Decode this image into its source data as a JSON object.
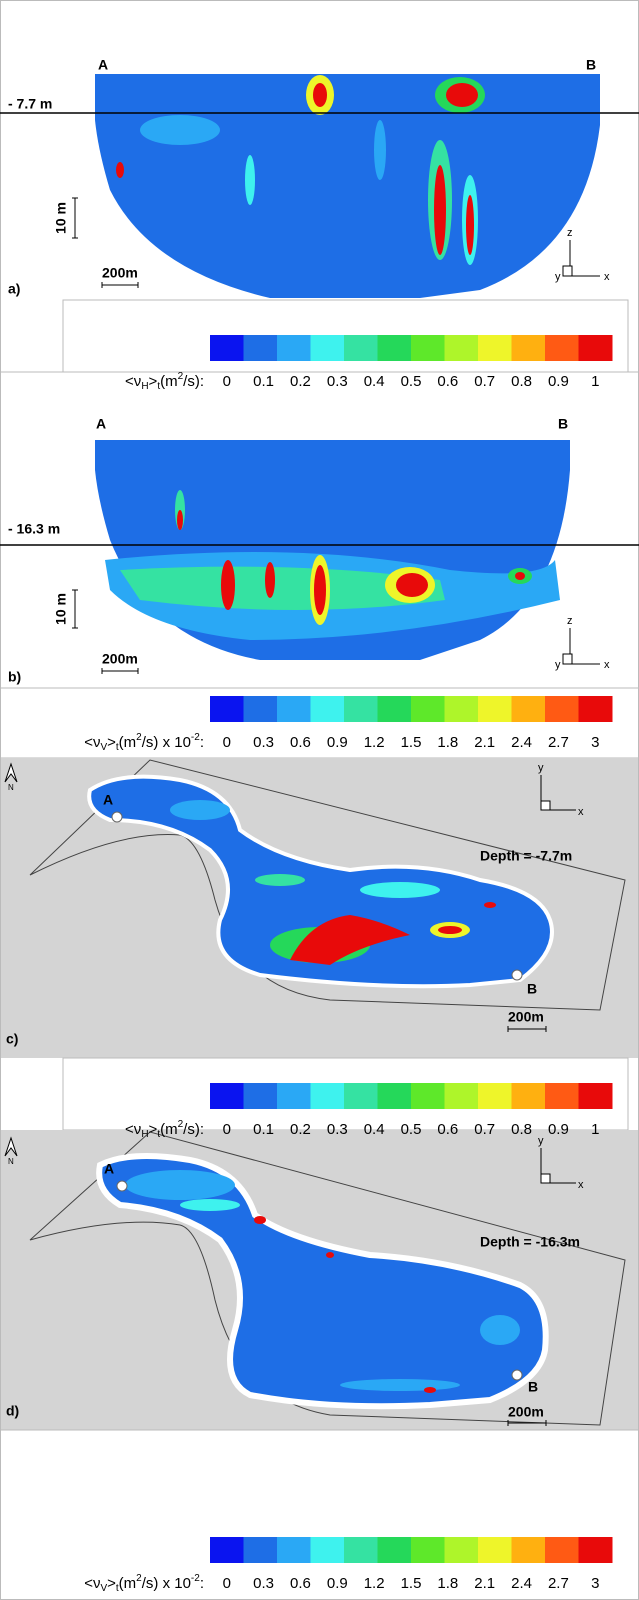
{
  "panels": [
    {
      "label": "a)",
      "point_a": "A",
      "point_b": "B",
      "depth": "- 7.7 m",
      "vertical_scale": "10 m",
      "horizontal_scale": "200m",
      "axis_z": "z",
      "axis_y": "y",
      "axis_x": "x"
    },
    {
      "label": "b)",
      "point_a": "A",
      "point_b": "B",
      "depth": "- 16.3 m",
      "vertical_scale": "10 m",
      "horizontal_scale": "200m",
      "axis_z": "z",
      "axis_y": "y",
      "axis_x": "x"
    },
    {
      "label": "c)",
      "point_a": "A",
      "point_b": "B",
      "depth": "Depth = -7.7m",
      "horizontal_scale": "200m",
      "north": "N",
      "axis_y": "y",
      "axis_x": "x"
    },
    {
      "label": "d)",
      "point_a": "A",
      "point_b": "B",
      "depth": "Depth = -16.3m",
      "horizontal_scale": "200m",
      "north": "N",
      "axis_y": "y",
      "axis_x": "x"
    }
  ],
  "colorbar_colors": [
    "#0a14f0",
    "#1e6ee6",
    "#2aa8f5",
    "#3ef2ee",
    "#35e2a2",
    "#25d85a",
    "#5ee82a",
    "#aef52a",
    "#eef52a",
    "#ffb010",
    "#ff5a14",
    "#e80a0a"
  ],
  "colorbars": [
    {
      "label": [
        {
          "text": "<ν"
        },
        {
          "text": "H",
          "sub": true
        },
        {
          "text": ">"
        },
        {
          "text": "t",
          "sub": true
        },
        {
          "text": "(m"
        },
        {
          "text": "2",
          "sup": true
        },
        {
          "text": "/s):"
        }
      ],
      "ticks": [
        "0",
        "0.1",
        "0.2",
        "0.3",
        "0.4",
        "0.5",
        "0.6",
        "0.7",
        "0.8",
        "0.9",
        "1"
      ]
    },
    {
      "label": [
        {
          "text": "<ν"
        },
        {
          "text": "V",
          "sub": true
        },
        {
          "text": ">"
        },
        {
          "text": "t",
          "sub": true
        },
        {
          "text": "(m"
        },
        {
          "text": "2",
          "sup": true
        },
        {
          "text": "/s) x 10"
        },
        {
          "text": "-2",
          "sup": true
        },
        {
          "text": ":"
        }
      ],
      "ticks": [
        "0",
        "0.3",
        "0.6",
        "0.9",
        "1.2",
        "1.5",
        "1.8",
        "2.1",
        "2.4",
        "2.7",
        "3"
      ]
    },
    {
      "label": [
        {
          "text": "<ν"
        },
        {
          "text": "H",
          "sub": true
        },
        {
          "text": ">"
        },
        {
          "text": "t",
          "sub": true
        },
        {
          "text": "(m"
        },
        {
          "text": "2",
          "sup": true
        },
        {
          "text": "/s):"
        }
      ],
      "ticks": [
        "0",
        "0.1",
        "0.2",
        "0.3",
        "0.4",
        "0.5",
        "0.6",
        "0.7",
        "0.8",
        "0.9",
        "1"
      ]
    },
    {
      "label": [
        {
          "text": "<ν"
        },
        {
          "text": "V",
          "sub": true
        },
        {
          "text": ">"
        },
        {
          "text": "t",
          "sub": true
        },
        {
          "text": "(m"
        },
        {
          "text": "2",
          "sup": true
        },
        {
          "text": "/s) x 10"
        },
        {
          "text": "-2",
          "sup": true
        },
        {
          "text": ":"
        }
      ],
      "ticks": [
        "0",
        "0.3",
        "0.6",
        "0.9",
        "1.2",
        "1.5",
        "1.8",
        "2.1",
        "2.4",
        "2.7",
        "3"
      ]
    }
  ]
}
